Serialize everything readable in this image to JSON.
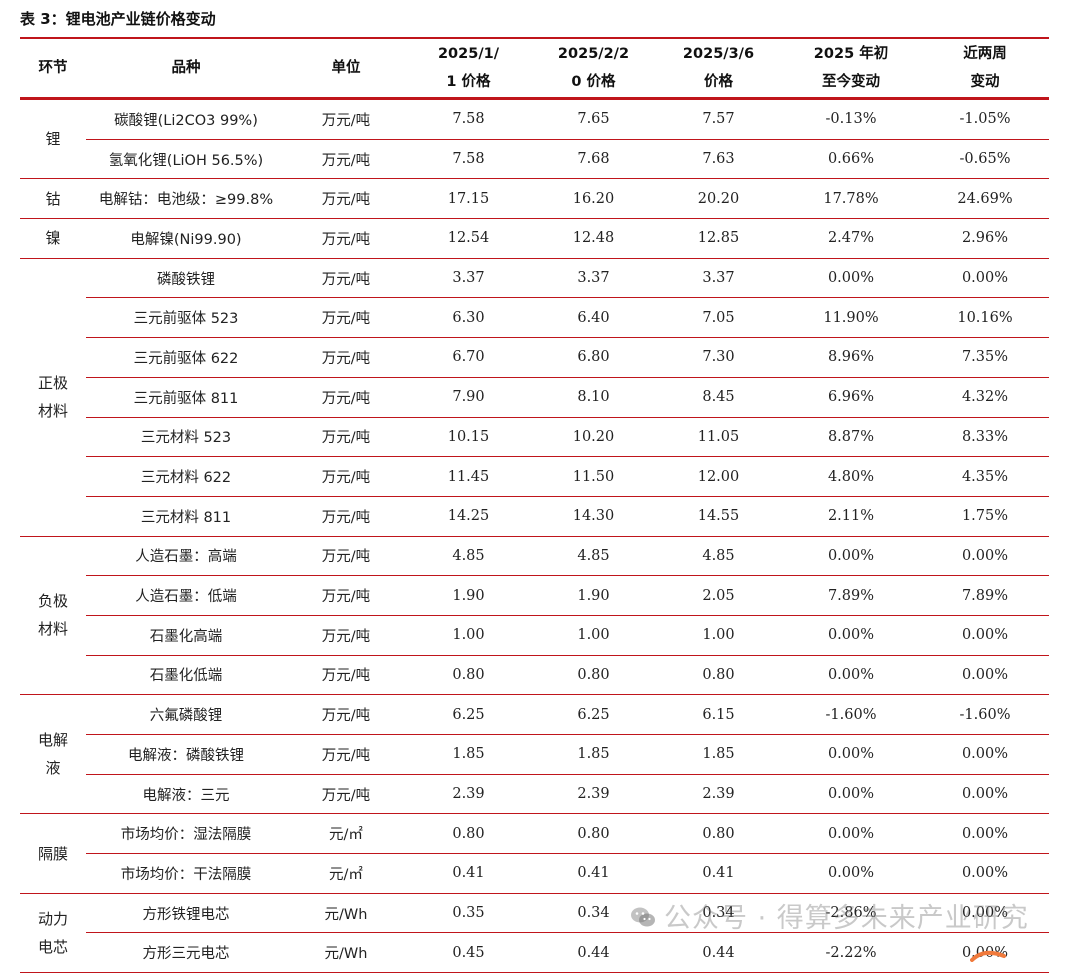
{
  "caption": "表 3：锂电池产业链价格变动",
  "headers": {
    "segment": "环节",
    "product": "品种",
    "unit": "单位",
    "p1_line1": "2025/1/",
    "p1_line2": "1 价格",
    "p2_line1": "2025/2/2",
    "p2_line2": "0 价格",
    "p3_line1": "2025/3/6",
    "p3_line2": "价格",
    "ytd_line1": "2025 年初",
    "ytd_line2": "至今变动",
    "wk_line1": "近两周",
    "wk_line2": "变动"
  },
  "groups": [
    {
      "segment_lines": [
        "锂"
      ],
      "rows": [
        {
          "name": "碳酸锂(Li2CO3 99%)",
          "unit": "万元/吨",
          "p1": "7.58",
          "p2": "7.65",
          "p3": "7.57",
          "ytd": "-0.13%",
          "wk": "-1.05%"
        },
        {
          "name": "氢氧化锂(LiOH 56.5%)",
          "unit": "万元/吨",
          "p1": "7.58",
          "p2": "7.68",
          "p3": "7.63",
          "ytd": "0.66%",
          "wk": "-0.65%"
        }
      ]
    },
    {
      "segment_lines": [
        "钴"
      ],
      "rows": [
        {
          "name": "电解钴：电池级：≥99.8%",
          "unit": "万元/吨",
          "p1": "17.15",
          "p2": "16.20",
          "p3": "20.20",
          "ytd": "17.78%",
          "wk": "24.69%"
        }
      ]
    },
    {
      "segment_lines": [
        "镍"
      ],
      "rows": [
        {
          "name": "电解镍(Ni99.90)",
          "unit": "万元/吨",
          "p1": "12.54",
          "p2": "12.48",
          "p3": "12.85",
          "ytd": "2.47%",
          "wk": "2.96%"
        }
      ]
    },
    {
      "segment_lines": [
        "正极",
        "材料"
      ],
      "rows": [
        {
          "name": "磷酸铁锂",
          "unit": "万元/吨",
          "p1": "3.37",
          "p2": "3.37",
          "p3": "3.37",
          "ytd": "0.00%",
          "wk": "0.00%"
        },
        {
          "name": "三元前驱体 523",
          "unit": "万元/吨",
          "p1": "6.30",
          "p2": "6.40",
          "p3": "7.05",
          "ytd": "11.90%",
          "wk": "10.16%"
        },
        {
          "name": "三元前驱体 622",
          "unit": "万元/吨",
          "p1": "6.70",
          "p2": "6.80",
          "p3": "7.30",
          "ytd": "8.96%",
          "wk": "7.35%"
        },
        {
          "name": "三元前驱体 811",
          "unit": "万元/吨",
          "p1": "7.90",
          "p2": "8.10",
          "p3": "8.45",
          "ytd": "6.96%",
          "wk": "4.32%"
        },
        {
          "name": "三元材料 523",
          "unit": "万元/吨",
          "p1": "10.15",
          "p2": "10.20",
          "p3": "11.05",
          "ytd": "8.87%",
          "wk": "8.33%"
        },
        {
          "name": "三元材料 622",
          "unit": "万元/吨",
          "p1": "11.45",
          "p2": "11.50",
          "p3": "12.00",
          "ytd": "4.80%",
          "wk": "4.35%"
        },
        {
          "name": "三元材料 811",
          "unit": "万元/吨",
          "p1": "14.25",
          "p2": "14.30",
          "p3": "14.55",
          "ytd": "2.11%",
          "wk": "1.75%"
        }
      ]
    },
    {
      "segment_lines": [
        "负极",
        "材料"
      ],
      "rows": [
        {
          "name": "人造石墨：高端",
          "unit": "万元/吨",
          "p1": "4.85",
          "p2": "4.85",
          "p3": "4.85",
          "ytd": "0.00%",
          "wk": "0.00%"
        },
        {
          "name": "人造石墨：低端",
          "unit": "万元/吨",
          "p1": "1.90",
          "p2": "1.90",
          "p3": "2.05",
          "ytd": "7.89%",
          "wk": "7.89%"
        },
        {
          "name": "石墨化高端",
          "unit": "万元/吨",
          "p1": "1.00",
          "p2": "1.00",
          "p3": "1.00",
          "ytd": "0.00%",
          "wk": "0.00%"
        },
        {
          "name": "石墨化低端",
          "unit": "万元/吨",
          "p1": "0.80",
          "p2": "0.80",
          "p3": "0.80",
          "ytd": "0.00%",
          "wk": "0.00%"
        }
      ]
    },
    {
      "segment_lines": [
        "电解",
        "液"
      ],
      "rows": [
        {
          "name": "六氟磷酸锂",
          "unit": "万元/吨",
          "p1": "6.25",
          "p2": "6.25",
          "p3": "6.15",
          "ytd": "-1.60%",
          "wk": "-1.60%"
        },
        {
          "name": "电解液：磷酸铁锂",
          "unit": "万元/吨",
          "p1": "1.85",
          "p2": "1.85",
          "p3": "1.85",
          "ytd": "0.00%",
          "wk": "0.00%"
        },
        {
          "name": "电解液：三元",
          "unit": "万元/吨",
          "p1": "2.39",
          "p2": "2.39",
          "p3": "2.39",
          "ytd": "0.00%",
          "wk": "0.00%"
        }
      ]
    },
    {
      "segment_lines": [
        "隔膜"
      ],
      "rows": [
        {
          "name": "市场均价：湿法隔膜",
          "unit": "元/㎡",
          "p1": "0.80",
          "p2": "0.80",
          "p3": "0.80",
          "ytd": "0.00%",
          "wk": "0.00%"
        },
        {
          "name": "市场均价：干法隔膜",
          "unit": "元/㎡",
          "p1": "0.41",
          "p2": "0.41",
          "p3": "0.41",
          "ytd": "0.00%",
          "wk": "0.00%"
        }
      ]
    },
    {
      "segment_lines": [
        "动力",
        "电芯"
      ],
      "rows": [
        {
          "name": "方形铁锂电芯",
          "unit": "元/Wh",
          "p1": "0.35",
          "p2": "0.34",
          "p3": "0.34",
          "ytd": "-2.86%",
          "wk": "0.00%"
        },
        {
          "name": "方形三元电芯",
          "unit": "元/Wh",
          "p1": "0.45",
          "p2": "0.44",
          "p3": "0.44",
          "ytd": "-2.22%",
          "wk": "0.00%"
        }
      ]
    }
  ],
  "watermark": "公众号 · 得算多未来产业研究",
  "watermark_icon": "wechat-icon",
  "colors": {
    "accent_red": "#c0151b",
    "watermark_gray": "#9a9a9a",
    "swoosh_orange": "#f07a3c"
  }
}
